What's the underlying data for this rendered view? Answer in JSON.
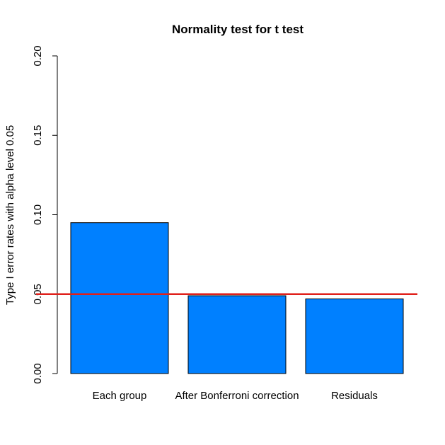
{
  "chart_data": {
    "type": "bar",
    "title": "Normality test for t test",
    "xlabel": "",
    "ylabel": "Type I error rates with alpha level 0.05",
    "categories": [
      "Each group",
      "After Bonferroni correction",
      "Residuals"
    ],
    "values": [
      0.095,
      0.049,
      0.047
    ],
    "ylim": [
      0,
      0.2
    ],
    "yticks": [
      "0.00",
      "0.05",
      "0.10",
      "0.15",
      "0.20"
    ],
    "reference_line": {
      "y": 0.05,
      "color": "#e0201b"
    },
    "bar_color": "#0080ff",
    "grid": false,
    "legend": "none"
  }
}
